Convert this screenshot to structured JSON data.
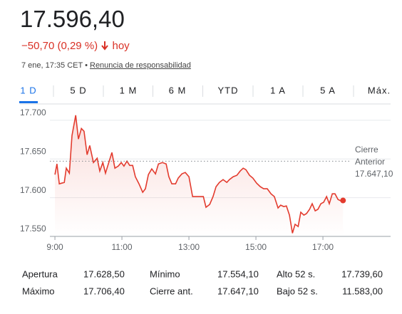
{
  "header": {
    "price": "17.596,40",
    "change": "−50,70 (0,29 %)",
    "period": "hoy",
    "timestamp": "7 ene, 17:35 CET",
    "disclaimer": "Renuncia de responsabilidad"
  },
  "tabs": [
    "1 D",
    "5 D",
    "1 M",
    "6 M",
    "YTD",
    "1 A",
    "5 A",
    "Máx."
  ],
  "selected_tab": 0,
  "chart_data": {
    "type": "line",
    "color": "#e33b2e",
    "x": [
      9.0,
      9.06,
      9.13,
      9.28,
      9.34,
      9.43,
      9.51,
      9.62,
      9.7,
      9.79,
      9.87,
      9.96,
      10.04,
      10.15,
      10.26,
      10.34,
      10.43,
      10.51,
      10.62,
      10.7,
      10.79,
      10.89,
      10.98,
      11.06,
      11.15,
      11.23,
      11.32,
      11.4,
      11.51,
      11.62,
      11.7,
      11.79,
      11.89,
      12.0,
      12.09,
      12.21,
      12.32,
      12.4,
      12.49,
      12.6,
      12.68,
      12.79,
      12.89,
      13.0,
      13.11,
      13.32,
      13.43,
      13.51,
      13.62,
      13.72,
      13.81,
      13.91,
      14.02,
      14.13,
      14.21,
      14.32,
      14.43,
      14.53,
      14.62,
      14.7,
      14.81,
      14.91,
      15.02,
      15.13,
      15.23,
      15.34,
      15.45,
      15.55,
      15.66,
      15.74,
      15.83,
      15.91,
      16.0,
      16.09,
      16.17,
      16.26,
      16.34,
      16.43,
      16.51,
      16.6,
      16.68,
      16.77,
      16.85,
      16.94,
      17.02,
      17.11,
      17.19,
      17.28,
      17.36,
      17.45,
      17.53,
      17.6
    ],
    "values": [
      17629.8,
      17643.6,
      17617.9,
      17619.7,
      17638.1,
      17631.7,
      17680.3,
      17706.4,
      17675.7,
      17689.4,
      17685.8,
      17655.5,
      17667.4,
      17645.4,
      17650.9,
      17634.4,
      17645.4,
      17631.7,
      17647.2,
      17658.3,
      17638.1,
      17640.8,
      17645.4,
      17640.8,
      17647.2,
      17641.7,
      17641.7,
      17627.1,
      17617.9,
      17606.9,
      17611.5,
      17629.8,
      17637.2,
      17630.7,
      17643.6,
      17645.4,
      17643.6,
      17627.1,
      17617.9,
      17617.9,
      17625.2,
      17630.7,
      17632.6,
      17627.1,
      17601.4,
      17601.4,
      17601.4,
      17587.6,
      17591.3,
      17601.4,
      17614.2,
      17619.7,
      17623.4,
      17619.7,
      17623.4,
      17627.1,
      17628.9,
      17634.4,
      17638.1,
      17636.2,
      17628.9,
      17625.2,
      17618.8,
      17614.2,
      17611.5,
      17611.5,
      17605.0,
      17601.4,
      17586.7,
      17590.4,
      17588.5,
      17589.4,
      17577.5,
      17554.1,
      17565.6,
      17562.8,
      17581.2,
      17577.5,
      17579.4,
      17584.9,
      17592.2,
      17583.0,
      17584.9,
      17592.2,
      17594.0,
      17601.4,
      17592.2,
      17605.0,
      17605.0,
      17597.7,
      17595.9,
      17596.4
    ],
    "xlim": [
      8.85,
      19.02
    ],
    "xticks": [
      {
        "value": 9,
        "label": "9:00"
      },
      {
        "value": 11,
        "label": "11:00"
      },
      {
        "value": 13,
        "label": "13:00"
      },
      {
        "value": 15,
        "label": "15:00"
      },
      {
        "value": 17,
        "label": "17:00"
      }
    ],
    "ylim": [
      17550,
      17710
    ],
    "yticks": [
      {
        "value": 17550,
        "label": "17.550"
      },
      {
        "value": 17600,
        "label": "17.600"
      },
      {
        "value": 17650,
        "label": "17.650"
      },
      {
        "value": 17700,
        "label": "17.700"
      }
    ],
    "grid": true,
    "annotation": {
      "lines": [
        "Cierre",
        "Anterior"
      ],
      "value": 17647.1,
      "label": "17.647,10"
    }
  },
  "stats": {
    "rows": [
      [
        "Apertura",
        "17.628,50",
        "Mínimo",
        "17.554,10",
        "Alto 52 s.",
        "17.739,60"
      ],
      [
        "Máximo",
        "17.706,40",
        "Cierre ant.",
        "17.647,10",
        "Bajo 52 s.",
        "11.583,00"
      ]
    ]
  }
}
